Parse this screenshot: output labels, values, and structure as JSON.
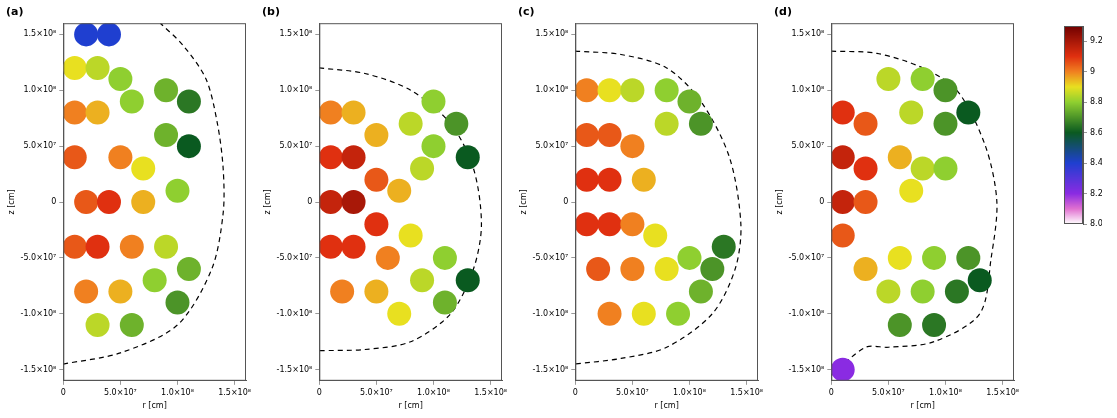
{
  "chart_data": [
    {
      "type": "scatter",
      "panel": "(a)",
      "x_label": "r [cm]",
      "y_label": "z [cm]",
      "grid": false,
      "xlim": [
        0,
        160000000.0
      ],
      "ylim": [
        -160000000.0,
        160000000.0
      ],
      "xticks": [
        0,
        {
          "value": 50000000.0,
          "label": "5.0×10⁷"
        },
        {
          "value": 100000000.0,
          "label": "1.0×10⁸"
        },
        {
          "value": 150000000.0,
          "label": "1.5×10⁸"
        }
      ],
      "yticks": [
        {
          "value": -150000000.0,
          "label": "-1.5×10⁸"
        },
        {
          "value": -100000000.0,
          "label": "-1.0×10⁸"
        },
        {
          "value": -50000000.0,
          "label": "-5.0×10⁷"
        },
        0,
        {
          "value": 50000000.0,
          "label": "5.0×10⁷"
        },
        {
          "value": 100000000.0,
          "label": "1.0×10⁸"
        },
        {
          "value": 150000000.0,
          "label": "1.5×10⁸"
        }
      ],
      "flame": {
        "r": [
          10000000.0,
          30000000.0,
          50000000.0,
          20000000.0,
          40000000.0,
          10000000.0,
          30000000.0,
          60000000.0,
          90000000.0,
          110000000.0,
          90000000.0,
          110000000.0,
          10000000.0,
          50000000.0,
          70000000.0,
          20000000.0,
          40000000.0,
          70000000.0,
          100000000.0,
          10000000.0,
          30000000.0,
          60000000.0,
          90000000.0,
          20000000.0,
          50000000.0,
          80000000.0,
          110000000.0,
          30000000.0,
          60000000.0,
          100000000.0
        ],
        "z": [
          120000000.0,
          120000000.0,
          110000000.0,
          150000000.0,
          150000000.0,
          80000000.0,
          80000000.0,
          90000000.0,
          100000000.0,
          90000000.0,
          60000000.0,
          50000000.0,
          40000000.0,
          40000000.0,
          30000000.0,
          0,
          0,
          0,
          10000000.0,
          -40000000.0,
          -40000000.0,
          -40000000.0,
          -40000000.0,
          -80000000.0,
          -80000000.0,
          -70000000.0,
          -60000000.0,
          -110000000.0,
          -110000000.0,
          -90000000.0
        ],
        "value": [
          8.9,
          8.85,
          8.8,
          8.4,
          8.4,
          9.0,
          8.95,
          8.8,
          8.75,
          8.65,
          8.75,
          8.6,
          9.05,
          9.0,
          8.9,
          9.05,
          9.1,
          8.95,
          8.8,
          9.05,
          9.1,
          9.0,
          8.85,
          9.0,
          8.95,
          8.8,
          8.75,
          8.85,
          8.75,
          8.7
        ]
      },
      "front": {
        "r": [
          0,
          50000000.0,
          100000000.0,
          130000000.0,
          140000000.0,
          140000000.0,
          135000000.0,
          125000000.0,
          105000000.0,
          85000000.0
        ],
        "z": [
          -145000000.0,
          -135000000.0,
          -110000000.0,
          -60000000.0,
          -10000000.0,
          30000000.0,
          70000000.0,
          110000000.0,
          140000000.0,
          160000000.0
        ],
        "line_style": "dashed",
        "color": "#000000"
      }
    },
    {
      "type": "scatter",
      "panel": "(b)",
      "x_label": "r [cm]",
      "y_label": "z [cm]",
      "grid": false,
      "xlim": [
        0,
        160000000.0
      ],
      "ylim": [
        -160000000.0,
        160000000.0
      ],
      "xticks": [
        0,
        {
          "value": 50000000.0,
          "label": "5.0×10⁷"
        },
        {
          "value": 100000000.0,
          "label": "1.0×10⁸"
        },
        {
          "value": 150000000.0,
          "label": "1.5×10⁸"
        }
      ],
      "yticks": [
        {
          "value": -150000000.0,
          "label": "-1.5×10⁸"
        },
        {
          "value": -100000000.0,
          "label": "-1.0×10⁸"
        },
        {
          "value": -50000000.0,
          "label": "-5.0×10⁷"
        },
        0,
        {
          "value": 50000000.0,
          "label": "5.0×10⁷"
        },
        {
          "value": 100000000.0,
          "label": "1.0×10⁸"
        },
        {
          "value": 150000000.0,
          "label": "1.5×10⁸"
        }
      ],
      "flame": {
        "r": [
          10000000.0,
          30000000.0,
          50000000.0,
          10000000.0,
          30000000.0,
          50000000.0,
          10000000.0,
          30000000.0,
          50000000.0,
          10000000.0,
          30000000.0,
          60000000.0,
          20000000.0,
          50000000.0,
          80000000.0,
          70000000.0,
          80000000.0,
          100000000.0,
          120000000.0,
          100000000.0,
          130000000.0,
          90000000.0,
          90000000.0,
          110000000.0,
          130000000.0,
          110000000.0,
          70000000.0
        ],
        "z": [
          80000000.0,
          80000000.0,
          60000000.0,
          40000000.0,
          40000000.0,
          20000000.0,
          0,
          0,
          -20000000.0,
          -40000000.0,
          -40000000.0,
          -50000000.0,
          -80000000.0,
          -80000000.0,
          -30000000.0,
          10000000.0,
          70000000.0,
          90000000.0,
          70000000.0,
          50000000.0,
          40000000.0,
          30000000.0,
          -70000000.0,
          -90000000.0,
          -70000000.0,
          -50000000.0,
          -100000000.0
        ],
        "value": [
          9.0,
          8.95,
          8.95,
          9.1,
          9.15,
          9.05,
          9.15,
          9.2,
          9.1,
          9.1,
          9.1,
          9.0,
          9.0,
          8.95,
          8.9,
          8.95,
          8.85,
          8.8,
          8.7,
          8.8,
          8.6,
          8.85,
          8.85,
          8.75,
          8.6,
          8.8,
          8.9
        ]
      },
      "front": {
        "r": [
          0,
          40000000.0,
          80000000.0,
          115000000.0,
          135000000.0,
          142000000.0,
          135000000.0,
          115000000.0,
          80000000.0,
          40000000.0,
          0
        ],
        "z": [
          120000000.0,
          115000000.0,
          100000000.0,
          70000000.0,
          30000000.0,
          -20000000.0,
          -60000000.0,
          -100000000.0,
          -125000000.0,
          -132000000.0,
          -133000000.0
        ],
        "line_style": "dashed",
        "color": "#000000"
      }
    },
    {
      "type": "scatter",
      "panel": "(c)",
      "x_label": "r [cm]",
      "y_label": "z [cm]",
      "grid": false,
      "xlim": [
        0,
        160000000.0
      ],
      "ylim": [
        -160000000.0,
        160000000.0
      ],
      "xticks": [
        0,
        {
          "value": 50000000.0,
          "label": "5.0×10⁷"
        },
        {
          "value": 100000000.0,
          "label": "1.0×10⁸"
        },
        {
          "value": 150000000.0,
          "label": "1.5×10⁸"
        }
      ],
      "yticks": [
        {
          "value": -150000000.0,
          "label": "-1.5×10⁸"
        },
        {
          "value": -100000000.0,
          "label": "-1.0×10⁸"
        },
        {
          "value": -50000000.0,
          "label": "-5.0×10⁷"
        },
        0,
        {
          "value": 50000000.0,
          "label": "5.0×10⁷"
        },
        {
          "value": 100000000.0,
          "label": "1.0×10⁸"
        },
        {
          "value": 150000000.0,
          "label": "1.5×10⁸"
        }
      ],
      "flame": {
        "r": [
          10000000.0,
          30000000.0,
          50000000.0,
          80000000.0,
          100000000.0,
          110000000.0,
          80000000.0,
          10000000.0,
          30000000.0,
          50000000.0,
          10000000.0,
          30000000.0,
          60000000.0,
          10000000.0,
          30000000.0,
          50000000.0,
          70000000.0,
          20000000.0,
          50000000.0,
          80000000.0,
          100000000.0,
          120000000.0,
          130000000.0,
          110000000.0,
          30000000.0,
          60000000.0,
          90000000.0
        ],
        "z": [
          100000000.0,
          100000000.0,
          100000000.0,
          100000000.0,
          90000000.0,
          70000000.0,
          70000000.0,
          60000000.0,
          60000000.0,
          50000000.0,
          20000000.0,
          20000000.0,
          20000000.0,
          -20000000.0,
          -20000000.0,
          -20000000.0,
          -30000000.0,
          -60000000.0,
          -60000000.0,
          -60000000.0,
          -50000000.0,
          -60000000.0,
          -40000000.0,
          -80000000.0,
          -100000000.0,
          -100000000.0,
          -100000000.0
        ],
        "value": [
          9.0,
          8.9,
          8.85,
          8.8,
          8.75,
          8.7,
          8.85,
          9.05,
          9.05,
          9.0,
          9.1,
          9.1,
          8.95,
          9.1,
          9.1,
          9.0,
          8.9,
          9.05,
          9.0,
          8.9,
          8.8,
          8.7,
          8.65,
          8.75,
          9.0,
          8.9,
          8.8
        ]
      },
      "front": {
        "r": [
          0,
          40000000.0,
          80000000.0,
          110000000.0,
          135000000.0,
          145000000.0,
          140000000.0,
          120000000.0,
          80000000.0,
          40000000.0,
          0
        ],
        "z": [
          135000000.0,
          132000000.0,
          120000000.0,
          90000000.0,
          40000000.0,
          -20000000.0,
          -60000000.0,
          -100000000.0,
          -130000000.0,
          -140000000.0,
          -145000000.0
        ],
        "line_style": "dashed",
        "color": "#000000"
      }
    },
    {
      "type": "scatter",
      "panel": "(d)",
      "x_label": "r [cm]",
      "y_label": "z [cm]",
      "grid": false,
      "xlim": [
        0,
        160000000.0
      ],
      "ylim": [
        -160000000.0,
        160000000.0
      ],
      "xticks": [
        0,
        {
          "value": 50000000.0,
          "label": "5.0×10⁷"
        },
        {
          "value": 100000000.0,
          "label": "1.0×10⁸"
        },
        {
          "value": 150000000.0,
          "label": "1.5×10⁸"
        }
      ],
      "yticks": [
        {
          "value": -150000000.0,
          "label": "-1.5×10⁸"
        },
        {
          "value": -100000000.0,
          "label": "-1.0×10⁸"
        },
        {
          "value": -50000000.0,
          "label": "-5.0×10⁷"
        },
        0,
        {
          "value": 50000000.0,
          "label": "5.0×10⁷"
        },
        {
          "value": 100000000.0,
          "label": "1.0×10⁸"
        },
        {
          "value": 150000000.0,
          "label": "1.5×10⁸"
        }
      ],
      "flame": {
        "r": [
          10000000.0,
          30000000.0,
          10000000.0,
          30000000.0,
          10000000.0,
          30000000.0,
          10000000.0,
          50000000.0,
          80000000.0,
          100000000.0,
          120000000.0,
          70000000.0,
          100000000.0,
          60000000.0,
          80000000.0,
          100000000.0,
          70000000.0,
          30000000.0,
          60000000.0,
          90000000.0,
          120000000.0,
          50000000.0,
          80000000.0,
          110000000.0,
          130000000.0,
          60000000.0,
          90000000.0,
          10000000.0
        ],
        "z": [
          80000000.0,
          70000000.0,
          40000000.0,
          30000000.0,
          0,
          0,
          -30000000.0,
          110000000.0,
          110000000.0,
          100000000.0,
          80000000.0,
          80000000.0,
          70000000.0,
          40000000.0,
          30000000.0,
          30000000.0,
          10000000.0,
          -60000000.0,
          -50000000.0,
          -50000000.0,
          -50000000.0,
          -80000000.0,
          -80000000.0,
          -80000000.0,
          -70000000.0,
          -110000000.0,
          -110000000.0,
          -150000000.0
        ],
        "value": [
          9.1,
          9.05,
          9.15,
          9.1,
          9.15,
          9.05,
          9.05,
          8.85,
          8.8,
          8.7,
          8.6,
          8.85,
          8.7,
          8.95,
          8.85,
          8.8,
          8.9,
          8.95,
          8.9,
          8.8,
          8.7,
          8.85,
          8.8,
          8.65,
          8.6,
          8.7,
          8.65,
          8.2
        ]
      },
      "front": {
        "r": [
          0,
          40000000.0,
          80000000.0,
          110000000.0,
          135000000.0,
          145000000.0,
          140000000.0,
          130000000.0,
          90000000.0,
          50000000.0,
          30000000.0,
          0
        ],
        "z": [
          135000000.0,
          133000000.0,
          120000000.0,
          100000000.0,
          50000000.0,
          0,
          -50000000.0,
          -100000000.0,
          -125000000.0,
          -130000000.0,
          -130000000.0,
          -155000000.0
        ],
        "line_style": "dashed",
        "color": "#000000"
      }
    }
  ],
  "color_bar": {
    "ylim": [
      8.0,
      9.3
    ],
    "yticks": [
      {
        "value": 8.0,
        "label": "8.0"
      },
      8.2,
      8.4,
      8.6,
      8.8,
      9.0,
      9.2
    ]
  }
}
